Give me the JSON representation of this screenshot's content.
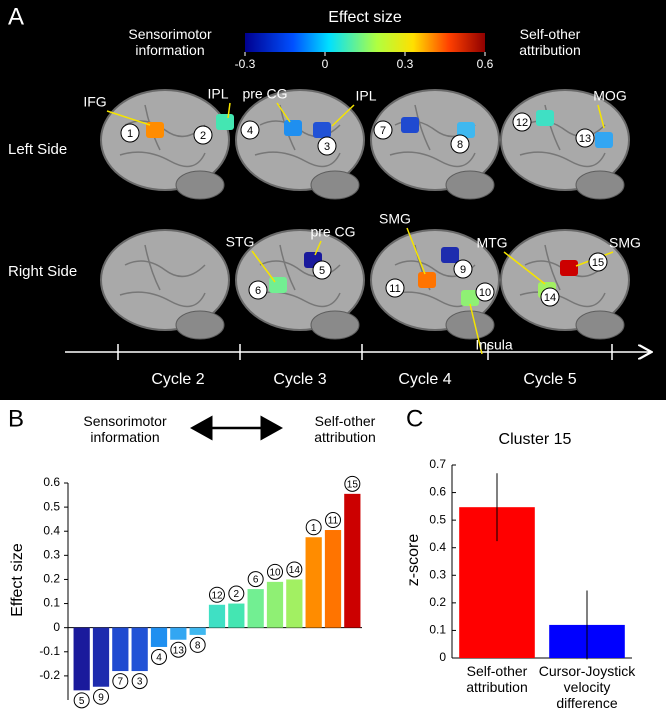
{
  "panel_a": {
    "label": "A",
    "colorbar": {
      "title": "Effect size",
      "left_label": "Sensorimotor information",
      "right_label": "Self-other attribution",
      "lim": [
        -0.3,
        0.6
      ],
      "ticks": [
        -0.3,
        0,
        0.3,
        0.6
      ]
    },
    "rows": [
      "Left Side",
      "Right Side"
    ],
    "cycles": [
      "Cycle 2",
      "Cycle 3",
      "Cycle 4",
      "Cycle 5"
    ],
    "regions": [
      "IFG",
      "IPL",
      "pre CG",
      "IPL",
      "MOG",
      "STG",
      "pre CG",
      "SMG",
      "Insula",
      "MTG",
      "SMG"
    ],
    "clusters": [
      "1",
      "2",
      "4",
      "3",
      "7",
      "8",
      "12",
      "13",
      "6",
      "5",
      "11",
      "9",
      "10",
      "15",
      "14"
    ]
  },
  "chart_data": [
    {
      "type": "bar",
      "panel_label": "B",
      "ylabel": "Effect size",
      "annotations": [
        "Sensorimotor information",
        "Self-other attribution"
      ],
      "categories": [
        "5",
        "9",
        "7",
        "3",
        "4",
        "13",
        "8",
        "12",
        "2",
        "6",
        "10",
        "14",
        "1",
        "11",
        "15"
      ],
      "values": [
        -0.26,
        -0.245,
        -0.18,
        -0.18,
        -0.08,
        -0.05,
        -0.03,
        0.095,
        0.1,
        0.16,
        0.19,
        0.2,
        0.375,
        0.405,
        0.555
      ],
      "colors": [
        "#1a1a9c",
        "#1e2cae",
        "#1f4ad0",
        "#2152d6",
        "#1f8ff0",
        "#33a6f2",
        "#3fb8f0",
        "#3fe0c4",
        "#44e6b2",
        "#72ef92",
        "#8ff074",
        "#a2f062",
        "#ff8c00",
        "#ff7400",
        "#cc0000"
      ],
      "ylim": [
        -0.3,
        0.6
      ],
      "yticks": [
        -0.2,
        -0.1,
        0,
        0.1,
        0.2,
        0.3,
        0.4,
        0.5,
        0.6
      ]
    },
    {
      "type": "errorbar",
      "panel_label": "C",
      "title": "Cluster 15",
      "ylabel": "z-score",
      "categories": [
        "Self-other attribution",
        "Cursor-Joystick velocity difference"
      ],
      "values": [
        0.547,
        0.12
      ],
      "errors": [
        0.123,
        0.125
      ],
      "colors": [
        "#ff0000",
        "#0000ff"
      ],
      "ylim": [
        0,
        0.7
      ],
      "yticks": [
        0,
        0.1,
        0.2,
        0.3,
        0.4,
        0.5,
        0.6,
        0.7
      ]
    }
  ]
}
